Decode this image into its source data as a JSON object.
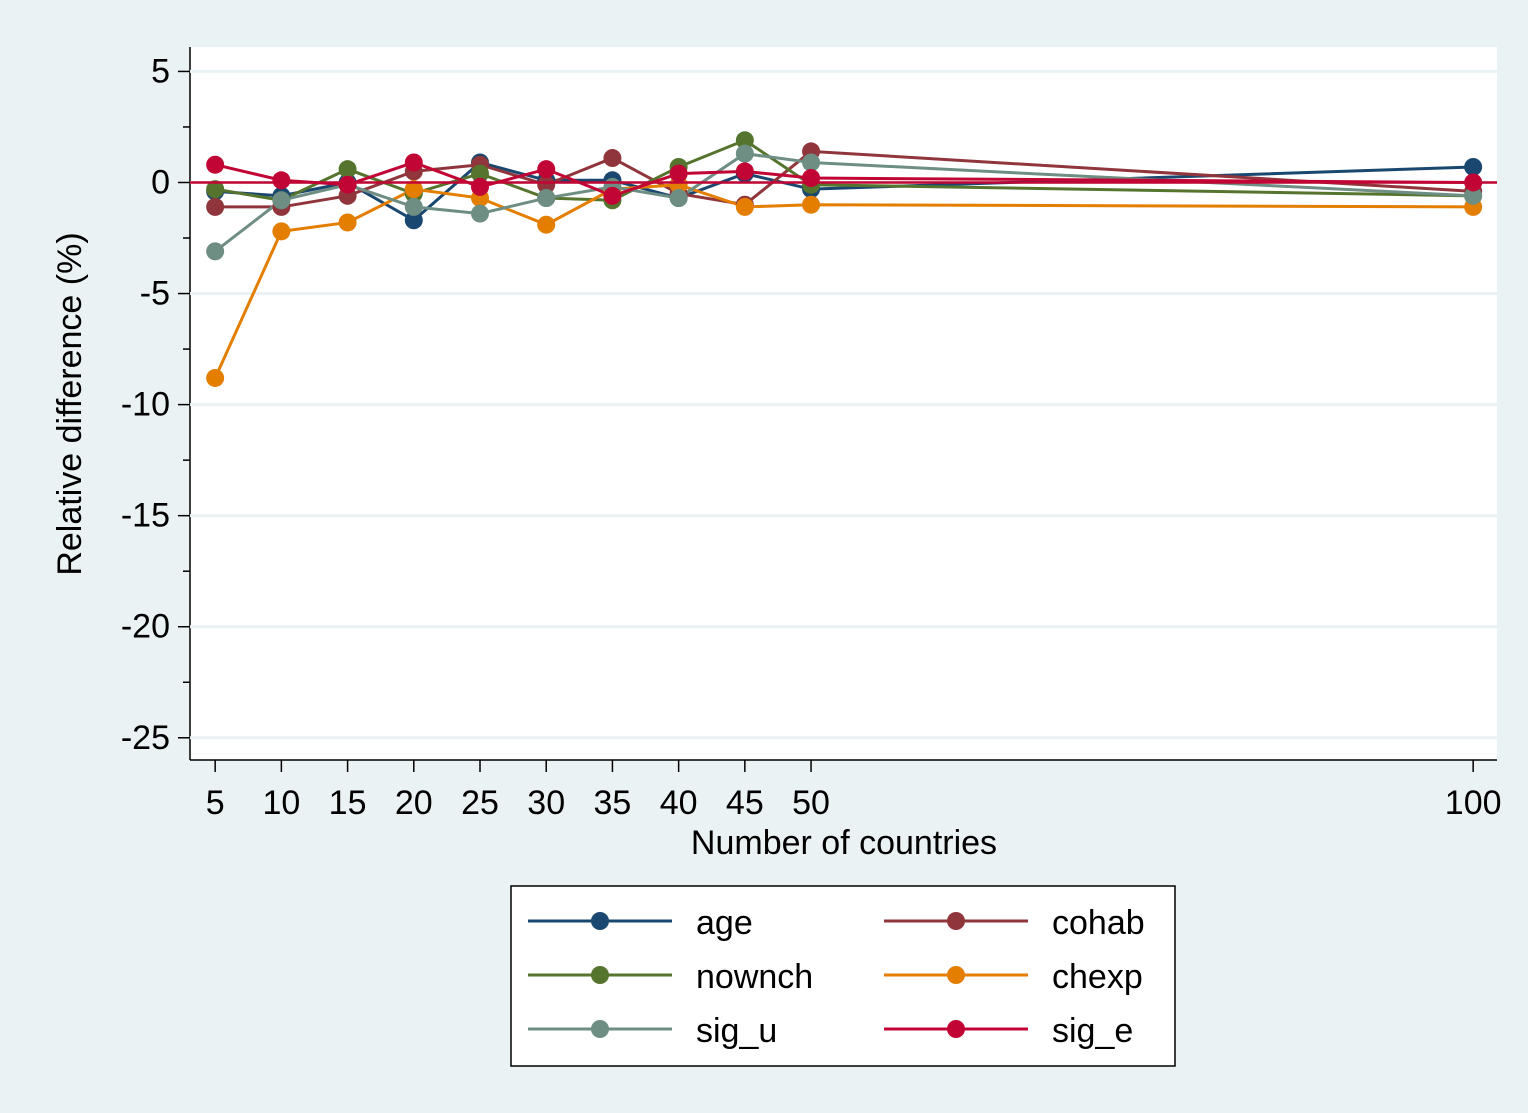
{
  "chart_data": {
    "type": "line",
    "x": [
      5,
      10,
      15,
      20,
      25,
      30,
      35,
      40,
      45,
      50,
      100
    ],
    "xlabel": "Number of countries",
    "ylabel": "Relative difference (%)",
    "xlim": [
      3.1,
      101.8
    ],
    "xticks": [
      5,
      10,
      15,
      20,
      25,
      30,
      35,
      40,
      45,
      50,
      100
    ],
    "ylim": [
      -26,
      6.1
    ],
    "yticks": [
      5,
      0,
      -5,
      -10,
      -15,
      -20,
      -25
    ],
    "yminorticks": [
      2.5,
      -2.5,
      -7.5,
      -12.5,
      -17.5,
      -22.5
    ],
    "grid": true,
    "yline": {
      "value": 0,
      "color": "#c10534"
    },
    "legend": "bottom",
    "series": [
      {
        "name": "age",
        "color": "#1a476f",
        "values": [
          -0.4,
          -0.6,
          0,
          -1.7,
          0.9,
          0.1,
          0.1,
          -0.7,
          0.4,
          -0.3,
          0.7
        ]
      },
      {
        "name": "cohab",
        "color": "#90353b",
        "values": [
          -1.1,
          -1.1,
          -0.6,
          0.5,
          0.8,
          -0.1,
          1.1,
          -0.5,
          -1.0,
          1.4,
          -0.4
        ]
      },
      {
        "name": "nownch",
        "color": "#55752f",
        "values": [
          -0.3,
          -0.8,
          0.6,
          -0.5,
          0.4,
          -0.7,
          -0.8,
          0.7,
          1.9,
          -0.1,
          -0.6
        ]
      },
      {
        "name": "chexp",
        "color": "#e37e00",
        "values": [
          -8.8,
          -2.2,
          -1.8,
          -0.3,
          -0.7,
          -1.9,
          -0.3,
          -0.1,
          -1.1,
          -1.0,
          -1.1
        ]
      },
      {
        "name": "sig_u",
        "color": "#6e8e84",
        "values": [
          -3.1,
          -0.8,
          -0.1,
          -1.1,
          -1.4,
          -0.7,
          -0.2,
          -0.7,
          1.3,
          0.9,
          -0.6
        ]
      },
      {
        "name": "sig_e",
        "color": "#c10534",
        "values": [
          0.8,
          0.1,
          -0.1,
          0.9,
          -0.2,
          0.6,
          -0.6,
          0.4,
          0.5,
          0.2,
          0.0
        ]
      }
    ]
  }
}
